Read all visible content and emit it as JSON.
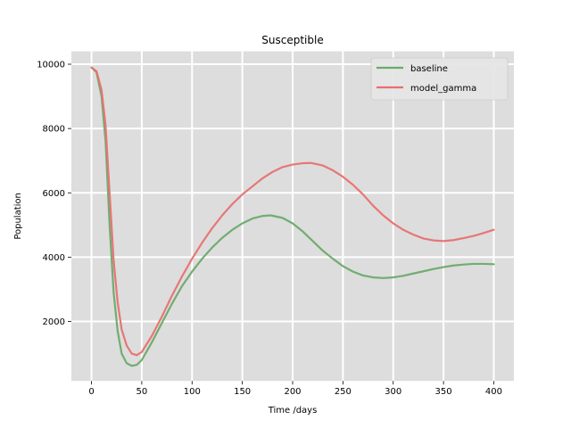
{
  "chart_data": {
    "type": "line",
    "title": "Susceptible",
    "xlabel": "Time /days",
    "ylabel": "Population",
    "xlim": [
      -20,
      420
    ],
    "ylim": [
      150,
      10400
    ],
    "xticks": [
      0,
      50,
      100,
      150,
      200,
      250,
      300,
      350,
      400
    ],
    "yticks": [
      2000,
      4000,
      6000,
      8000,
      10000
    ],
    "grid": true,
    "legend_position": "top-right",
    "background": "#dddddd",
    "series": [
      {
        "name": "baseline",
        "color": "#6aaa6a",
        "x": [
          0,
          5,
          10,
          14,
          18,
          22,
          26,
          30,
          35,
          40,
          45,
          50,
          60,
          70,
          80,
          90,
          100,
          110,
          120,
          130,
          140,
          150,
          160,
          170,
          178,
          190,
          200,
          210,
          220,
          230,
          240,
          250,
          260,
          270,
          280,
          290,
          300,
          310,
          320,
          330,
          340,
          350,
          360,
          370,
          380,
          390,
          400
        ],
        "y": [
          9900,
          9750,
          9000,
          7600,
          5000,
          2900,
          1700,
          1000,
          700,
          620,
          650,
          800,
          1350,
          1950,
          2550,
          3100,
          3550,
          3950,
          4300,
          4600,
          4850,
          5050,
          5200,
          5280,
          5300,
          5220,
          5050,
          4800,
          4500,
          4200,
          3950,
          3720,
          3550,
          3430,
          3370,
          3350,
          3370,
          3420,
          3490,
          3560,
          3630,
          3690,
          3740,
          3770,
          3790,
          3790,
          3780
        ]
      },
      {
        "name": "model_gamma",
        "color": "#e87070",
        "x": [
          0,
          5,
          10,
          14,
          18,
          22,
          26,
          30,
          35,
          40,
          45,
          50,
          60,
          70,
          80,
          90,
          100,
          110,
          120,
          130,
          140,
          150,
          160,
          170,
          180,
          190,
          200,
          210,
          218,
          230,
          240,
          250,
          260,
          270,
          280,
          290,
          300,
          310,
          320,
          330,
          340,
          350,
          360,
          370,
          380,
          390,
          400
        ],
        "y": [
          9900,
          9780,
          9200,
          8100,
          6000,
          3900,
          2600,
          1750,
          1250,
          1000,
          950,
          1050,
          1550,
          2150,
          2800,
          3400,
          3950,
          4450,
          4900,
          5300,
          5650,
          5950,
          6200,
          6450,
          6650,
          6800,
          6880,
          6920,
          6930,
          6850,
          6700,
          6500,
          6250,
          5950,
          5600,
          5300,
          5050,
          4850,
          4700,
          4580,
          4520,
          4500,
          4530,
          4590,
          4660,
          4750,
          4850
        ]
      }
    ]
  }
}
